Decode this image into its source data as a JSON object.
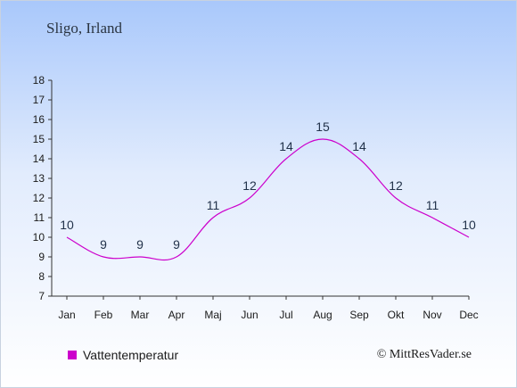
{
  "header": {
    "title": "Sligo, Irland"
  },
  "legend": {
    "label": "Vattentemperatur",
    "color": "#cc00cc"
  },
  "footer": {
    "copyright": "© MittResVader.se"
  },
  "chart_data": {
    "type": "line",
    "title": "Sligo, Irland",
    "xlabel": "",
    "ylabel": "",
    "categories": [
      "Jan",
      "Feb",
      "Mar",
      "Apr",
      "Maj",
      "Jun",
      "Jul",
      "Aug",
      "Sep",
      "Okt",
      "Nov",
      "Dec"
    ],
    "series": [
      {
        "name": "Vattentemperatur",
        "values": [
          10,
          9,
          9,
          9,
          11,
          12,
          14,
          15,
          14,
          12,
          11,
          10
        ],
        "color": "#cc00cc"
      }
    ],
    "ylim": [
      7,
      18
    ],
    "yticks": [
      7,
      8,
      9,
      10,
      11,
      12,
      13,
      14,
      15,
      16,
      17,
      18
    ],
    "grid": false,
    "legend_position": "bottom-left"
  }
}
